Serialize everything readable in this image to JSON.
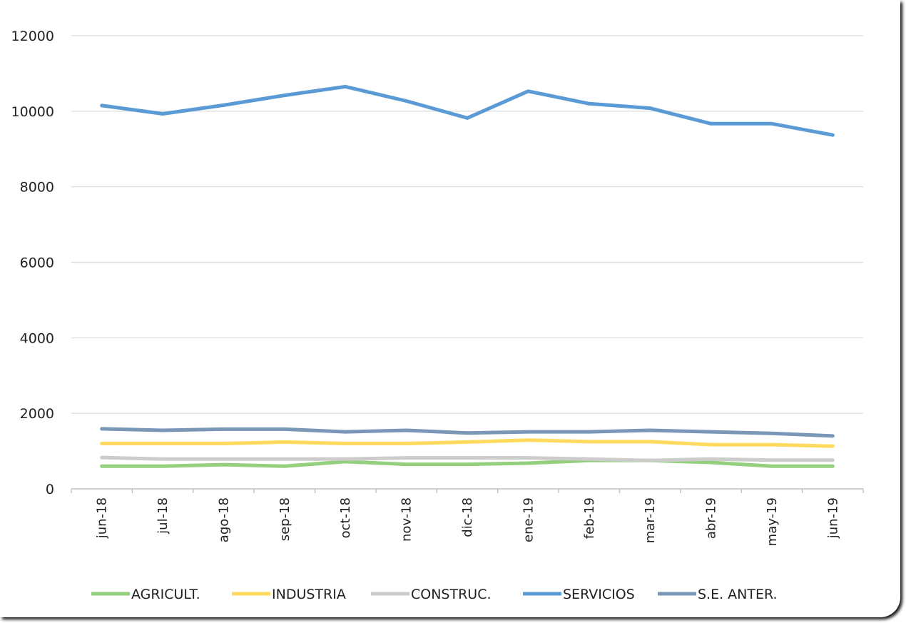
{
  "chart_data": {
    "type": "line",
    "title": "",
    "xlabel": "",
    "ylabel": "",
    "categories": [
      "jun-18",
      "jul-18",
      "ago-18",
      "sep-18",
      "oct-18",
      "nov-18",
      "dic-18",
      "ene-19",
      "feb-19",
      "mar-19",
      "abr-19",
      "may-19",
      "jun-19"
    ],
    "ylim": [
      0,
      12000
    ],
    "yticks": [
      0,
      2000,
      4000,
      6000,
      8000,
      10000,
      12000
    ],
    "grid": true,
    "legend_position": "bottom",
    "series": [
      {
        "name": "AGRICULT.",
        "color": "#93cf7c",
        "values": [
          600,
          600,
          640,
          600,
          720,
          650,
          650,
          680,
          750,
          750,
          700,
          600,
          600
        ]
      },
      {
        "name": "INDUSTRIA",
        "color": "#fedb5f",
        "values": [
          1200,
          1200,
          1200,
          1240,
          1200,
          1200,
          1240,
          1290,
          1250,
          1250,
          1170,
          1170,
          1130
        ]
      },
      {
        "name": "CONSTRUC.",
        "color": "#cccccc",
        "values": [
          830,
          790,
          790,
          790,
          790,
          820,
          820,
          820,
          790,
          750,
          790,
          760,
          760
        ]
      },
      {
        "name": "SERVICIOS",
        "color": "#5a9bd5",
        "values": [
          10150,
          9930,
          10160,
          10420,
          10650,
          10270,
          9820,
          10530,
          10200,
          10080,
          9670,
          9670,
          9370
        ]
      },
      {
        "name": "S.E. ANTER.",
        "color": "#7b97b8",
        "values": [
          1590,
          1550,
          1580,
          1580,
          1510,
          1550,
          1480,
          1510,
          1510,
          1550,
          1510,
          1470,
          1400
        ]
      }
    ]
  }
}
